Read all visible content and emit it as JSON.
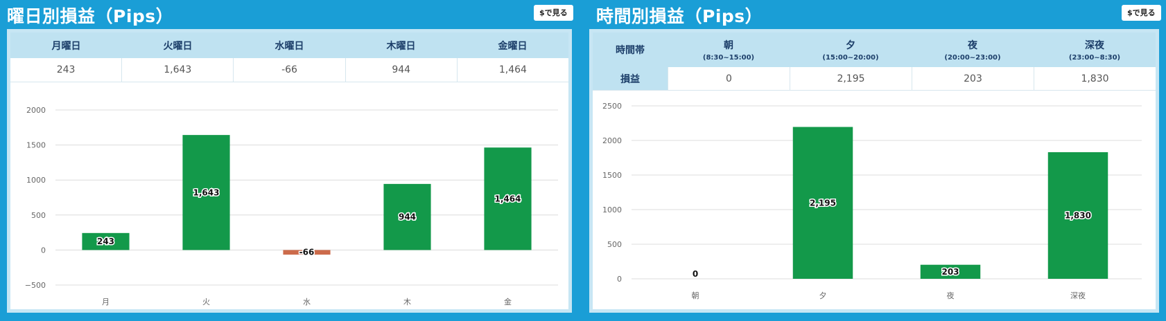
{
  "colors": {
    "background": "#1a9ed6",
    "positive": "#13994a",
    "negative": "#cc6b4b",
    "header": "#bfe2f1"
  },
  "button": {
    "label": "$で見る"
  },
  "day_panel": {
    "title": "曜日別損益（Pips）",
    "table": {
      "headers": [
        "月曜日",
        "火曜日",
        "水曜日",
        "木曜日",
        "金曜日"
      ],
      "values": [
        "243",
        "1,643",
        "-66",
        "944",
        "1,464"
      ]
    }
  },
  "time_panel": {
    "title": "時間別損益（Pips）",
    "table": {
      "row_header_1": "時間帯",
      "row_header_2": "損益",
      "headers": [
        {
          "label": "朝",
          "range": "(8:30~15:00)"
        },
        {
          "label": "夕",
          "range": "(15:00~20:00)"
        },
        {
          "label": "夜",
          "range": "(20:00~23:00)"
        },
        {
          "label": "深夜",
          "range": "(23:00~8:30)"
        }
      ],
      "values": [
        "0",
        "2,195",
        "203",
        "1,830"
      ]
    }
  },
  "chart_data": [
    {
      "type": "bar",
      "title": "曜日別損益（Pips）",
      "categories": [
        "月",
        "火",
        "水",
        "木",
        "金"
      ],
      "values": [
        243,
        1643,
        -66,
        944,
        1464
      ],
      "labels": [
        "243",
        "1,643",
        "-66",
        "944",
        "1,464"
      ],
      "ylim": [
        -500,
        2000
      ],
      "yticks": [
        -500,
        0,
        500,
        1000,
        1500,
        2000
      ],
      "ytick_labels": [
        "−500",
        "0",
        "500",
        "1000",
        "1500",
        "2000"
      ],
      "grid": true,
      "xlabel": "",
      "ylabel": ""
    },
    {
      "type": "bar",
      "title": "時間別損益（Pips）",
      "categories": [
        "朝",
        "夕",
        "夜",
        "深夜"
      ],
      "values": [
        0,
        2195,
        203,
        1830
      ],
      "labels": [
        "0",
        "2,195",
        "203",
        "1,830"
      ],
      "ylim": [
        0,
        2500
      ],
      "yticks": [
        0,
        500,
        1000,
        1500,
        2000,
        2500
      ],
      "ytick_labels": [
        "0",
        "500",
        "1000",
        "1500",
        "2000",
        "2500"
      ],
      "grid": true,
      "xlabel": "",
      "ylabel": ""
    }
  ]
}
